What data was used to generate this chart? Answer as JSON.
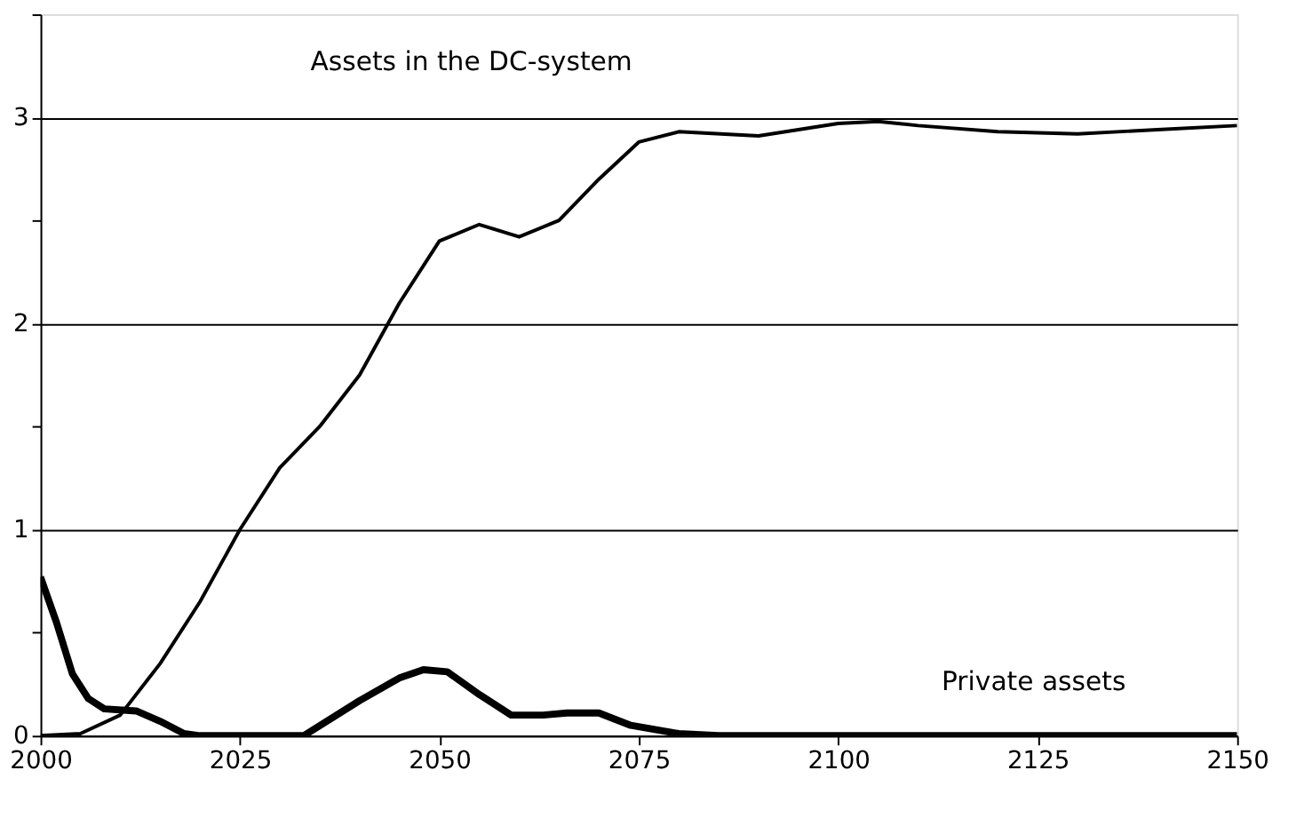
{
  "chart_data": {
    "type": "line",
    "xlim": [
      2000,
      2150
    ],
    "xticks": [
      2000,
      2025,
      2050,
      2075,
      2100,
      2125,
      2150
    ],
    "ylim": [
      0,
      3.5
    ],
    "yticks": [
      0,
      {
        "value": 0.5,
        "label": null
      },
      1,
      {
        "value": 1.5,
        "label": null
      },
      2,
      {
        "value": 2.5,
        "label": null
      },
      3,
      {
        "value": 3.5,
        "label": null
      }
    ],
    "grid": "y",
    "line_style": "solid",
    "series": [
      {
        "name": "Assets in the DC-system",
        "color": "#000000",
        "x": [
          2000,
          2005,
          2010,
          2015,
          2020,
          2025,
          2030,
          2035,
          2040,
          2045,
          2050,
          2055,
          2060,
          2065,
          2070,
          2075,
          2080,
          2090,
          2100,
          2105,
          2110,
          2120,
          2130,
          2140,
          2150
        ],
        "values": [
          0,
          0.01,
          0.1,
          0.35,
          0.65,
          1.0,
          1.3,
          1.5,
          1.75,
          2.1,
          2.4,
          2.48,
          2.42,
          2.5,
          2.7,
          2.88,
          2.93,
          2.91,
          2.97,
          2.98,
          2.96,
          2.93,
          2.92,
          2.94,
          2.96
        ]
      },
      {
        "name": "Private assets",
        "color": "#000000",
        "x": [
          2000,
          2002,
          2004,
          2006,
          2008,
          2012,
          2015,
          2018,
          2020,
          2033,
          2040,
          2045,
          2048,
          2051,
          2055,
          2059,
          2063,
          2066,
          2070,
          2074,
          2080,
          2085,
          2150
        ],
        "values": [
          0.77,
          0.55,
          0.3,
          0.18,
          0.13,
          0.12,
          0.07,
          0.01,
          0,
          0,
          0.17,
          0.28,
          0.32,
          0.31,
          0.2,
          0.1,
          0.1,
          0.11,
          0.11,
          0.05,
          0.01,
          0,
          0
        ]
      }
    ]
  }
}
